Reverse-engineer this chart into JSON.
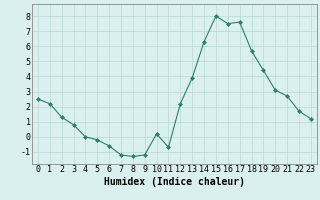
{
  "x": [
    0,
    1,
    2,
    3,
    4,
    5,
    6,
    7,
    8,
    9,
    10,
    11,
    12,
    13,
    14,
    15,
    16,
    17,
    18,
    19,
    20,
    21,
    22,
    23
  ],
  "y": [
    2.5,
    2.2,
    1.3,
    0.8,
    0.0,
    -0.2,
    -0.6,
    -1.2,
    -1.3,
    -1.2,
    0.2,
    -0.7,
    2.2,
    3.9,
    6.3,
    8.0,
    7.5,
    7.6,
    5.7,
    4.4,
    3.1,
    2.7,
    1.7,
    1.2
  ],
  "line_color": "#2e7d70",
  "marker": "D",
  "marker_size": 2,
  "bg_color": "#d9f0ee",
  "grid_color": "#b8d8d4",
  "axis_color": "#888888",
  "xlabel": "Humidex (Indice chaleur)",
  "xlabel_fontsize": 7,
  "xlabel_bold": true,
  "tick_fontsize": 6,
  "ylim": [
    -1.8,
    8.8
  ],
  "yticks": [
    -1,
    0,
    1,
    2,
    3,
    4,
    5,
    6,
    7,
    8
  ],
  "xlim": [
    -0.5,
    23.5
  ],
  "title": ""
}
